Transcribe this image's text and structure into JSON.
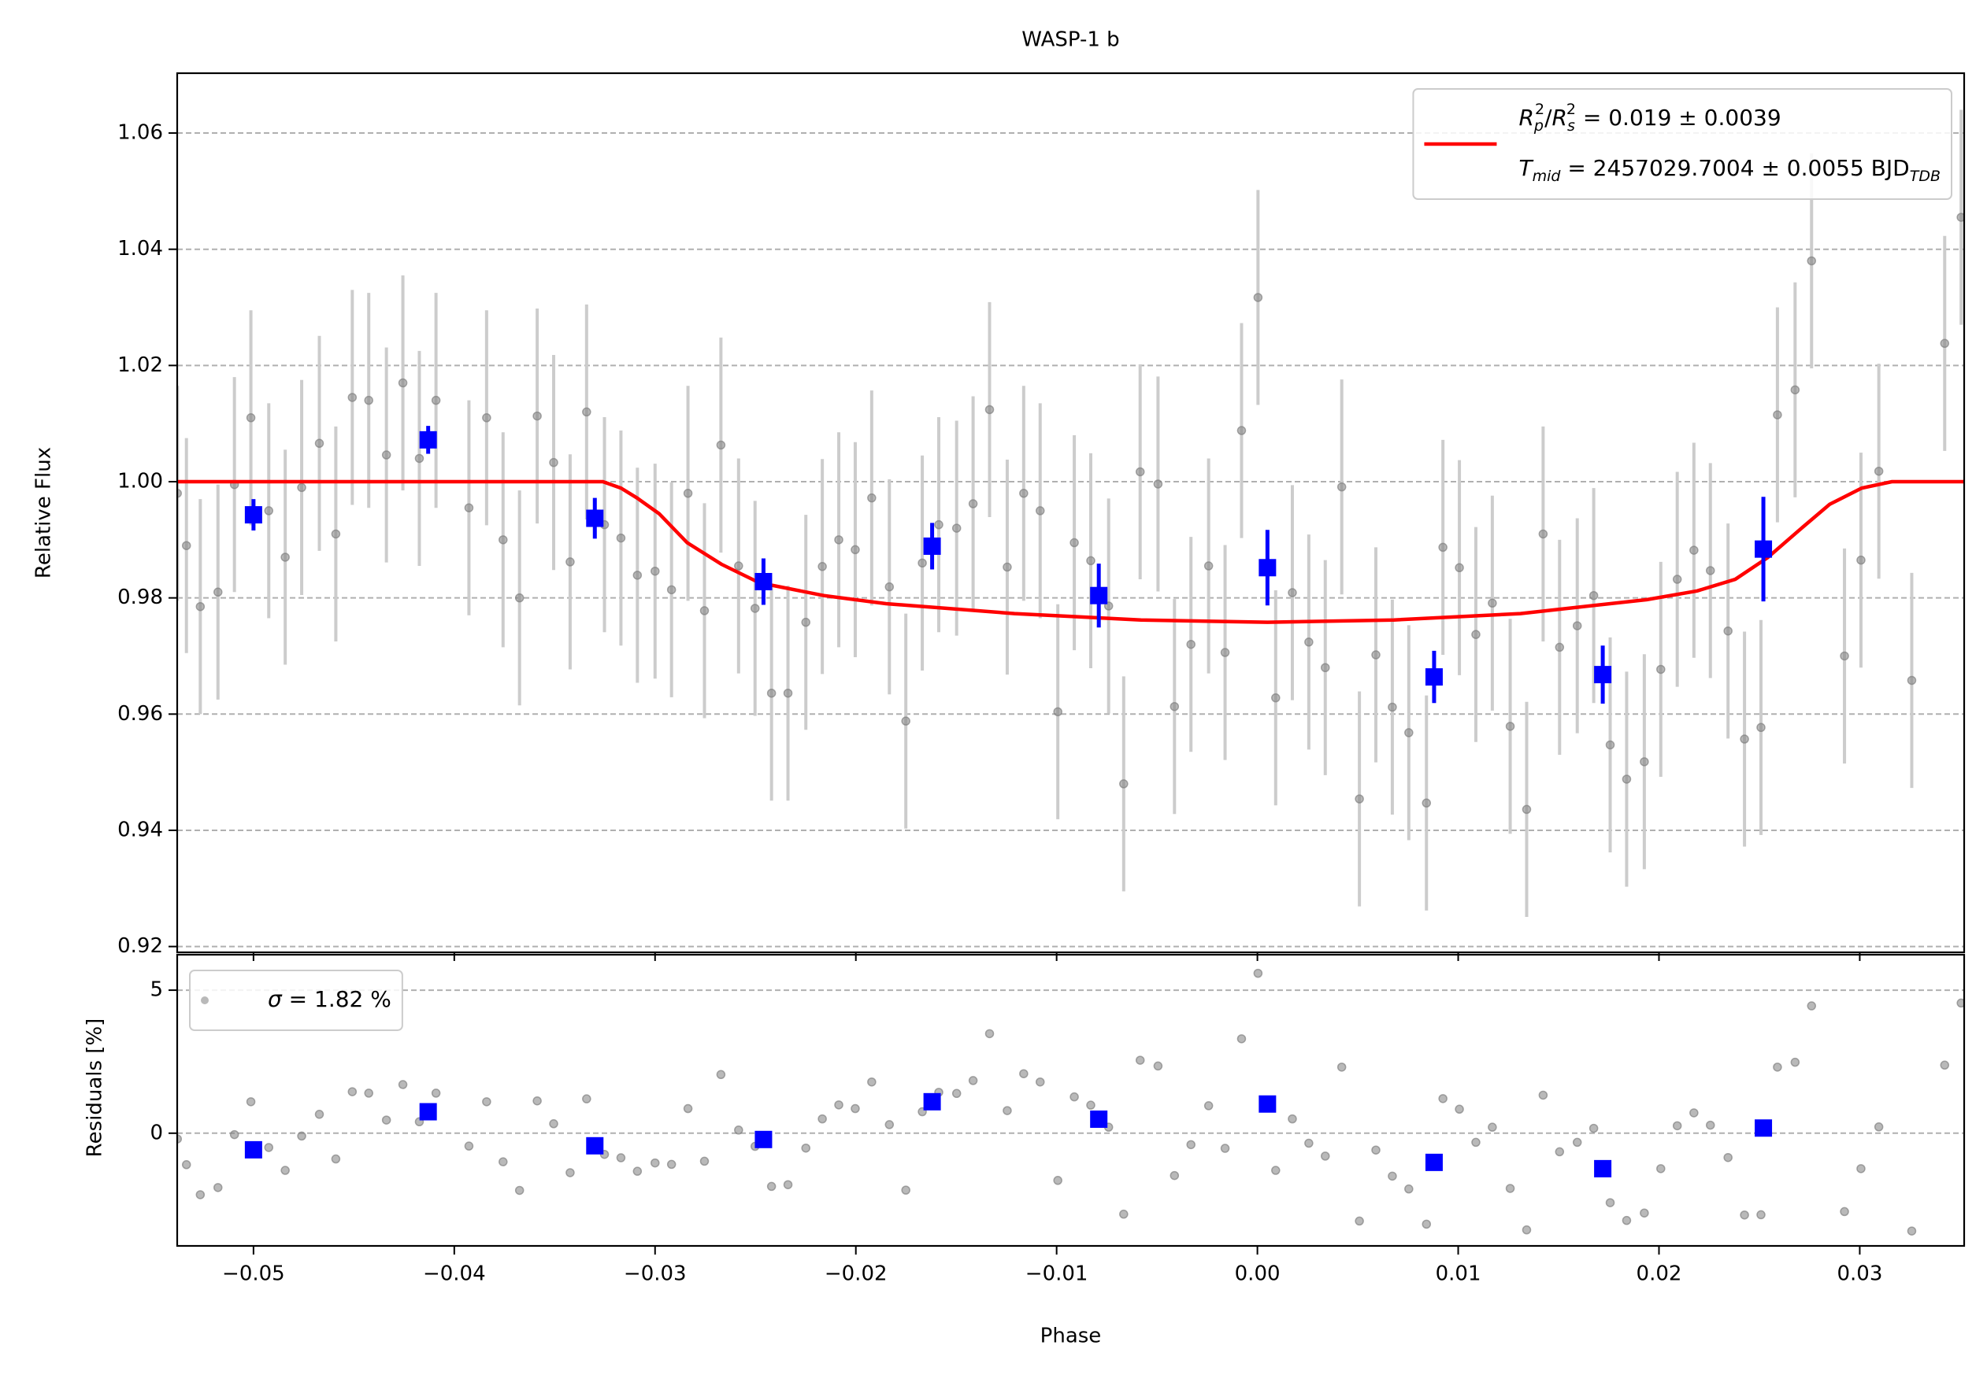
{
  "chart_data": [
    {
      "type": "errorbar",
      "title": "WASP-1 b",
      "ylabel": "Relative Flux",
      "xlim": [
        -0.0538,
        0.0352
      ],
      "ylim": [
        0.919,
        1.0703
      ],
      "yticks": [
        0.92,
        0.94,
        0.96,
        0.98,
        {
          "value": 1,
          "label": "1.00"
        },
        1.02,
        1.04,
        1.06
      ],
      "grid": true,
      "legend": "upper right",
      "series": [
        {
          "marker": "circle",
          "color": "#808080",
          "errcolor": "#cccccc",
          "yerr": 0.0185,
          "x": [
            -0.05379,
            -0.05334,
            -0.05265,
            -0.05177,
            -0.05095,
            -0.05013,
            -0.04924,
            -0.04842,
            -0.0476,
            -0.04672,
            -0.0459,
            -0.04508,
            -0.04426,
            -0.04338,
            -0.04256,
            -0.04174,
            -0.04091,
            -0.03927,
            -0.03839,
            -0.03757,
            -0.03675,
            -0.03587,
            -0.03505,
            -0.03423,
            -0.03341,
            -0.03252,
            -0.0317,
            -0.03088,
            -0.03,
            -0.02918,
            -0.02836,
            -0.02754,
            -0.02672,
            -0.02584,
            -0.02502,
            -0.0242,
            -0.02338,
            -0.02249,
            -0.02167,
            -0.02085,
            -0.02003,
            -0.01921,
            -0.01833,
            -0.01751,
            -0.01669,
            -0.01587,
            -0.01498,
            -0.01416,
            -0.01334,
            -0.01246,
            -0.01164,
            -0.01082,
            -0.00994,
            -0.00912,
            -0.0083,
            -0.00741,
            -0.00666,
            -0.00584,
            -0.00495,
            -0.00413,
            -0.00331,
            -0.00243,
            -0.00161,
            -0.00079,
            3e-05,
            0.00091,
            0.00174,
            0.00256,
            0.00338,
            0.0042,
            0.00508,
            0.0059,
            0.00672,
            0.00754,
            0.00842,
            0.00924,
            0.01006,
            0.01088,
            0.0117,
            0.01259,
            0.01341,
            0.01423,
            0.01505,
            0.01593,
            0.01675,
            0.01757,
            0.01839,
            0.01927,
            0.02009,
            0.02091,
            0.02174,
            0.02256,
            0.02344,
            0.02426,
            0.02508,
            0.0259,
            0.02678,
            0.0276,
            0.02924,
            0.03006,
            0.03095,
            0.03259,
            0.03423,
            0.03505
          ],
          "values": [
            0.998,
            0.989,
            0.9785,
            0.981,
            0.9995,
            1.011,
            0.995,
            0.987,
            0.999,
            1.0066,
            0.991,
            1.0145,
            1.014,
            1.0046,
            1.017,
            1.004,
            1.014,
            0.9955,
            1.011,
            0.99,
            0.98,
            1.0113,
            1.0033,
            0.9862,
            1.012,
            0.9926,
            0.9903,
            0.9839,
            0.9846,
            0.9814,
            0.998,
            0.9778,
            1.0063,
            0.9855,
            0.9782,
            0.9636,
            0.9636,
            0.9758,
            0.9854,
            0.99,
            0.9883,
            0.9972,
            0.9819,
            0.9588,
            0.986,
            0.9926,
            0.992,
            0.9962,
            1.0124,
            0.9853,
            0.998,
            0.995,
            0.9604,
            0.9895,
            0.9864,
            0.9786,
            0.948,
            1.0017,
            0.9996,
            0.9613,
            0.972,
            0.9855,
            0.9706,
            1.0088,
            1.0317,
            0.9628,
            0.9809,
            0.9724,
            0.968,
            0.9991,
            0.9454,
            0.9702,
            0.9612,
            0.9568,
            0.9447,
            0.9887,
            0.9852,
            0.9737,
            0.9791,
            0.9579,
            0.9436,
            0.991,
            0.9715,
            0.9752,
            0.9804,
            0.9547,
            0.9488,
            0.9518,
            0.9677,
            0.9832,
            0.9882,
            0.9847,
            0.9743,
            0.9557,
            0.9577,
            1.0115,
            1.0158,
            1.038,
            0.97,
            0.9865,
            1.0018,
            0.9658,
            1.0238,
            1.0455
          ]
        },
        {
          "marker": "none",
          "color": "#ff0000",
          "name": [
            [
              {
                "text": "R",
                "font": "italic"
              },
              {
                "text": "p",
                "font": "italic-sub"
              },
              {
                "text": "2",
                "font": "sup-stack"
              },
              {
                "text": "/",
                "font": "normal"
              },
              {
                "text": "R",
                "font": "italic"
              },
              {
                "text": "s",
                "font": "italic-sub"
              },
              {
                "text": "2",
                "font": "sup-stack"
              },
              {
                "text": " = 0.019 ± 0.0039",
                "font": "normal"
              }
            ],
            [
              {
                "text": "T",
                "font": "italic"
              },
              {
                "text": "mid",
                "font": "italic-sub"
              },
              {
                "text": " = 2457029.7004 ± 0.0055 BJD",
                "font": "normal"
              },
              {
                "text": "TDB",
                "font": "italic-sub"
              }
            ]
          ],
          "x": [
            -0.0538,
            -0.0326,
            -0.0317,
            -0.0309,
            -0.0298,
            -0.0284,
            -0.0267,
            -0.0248,
            -0.0216,
            -0.0185,
            -0.0121,
            -0.0058,
            0.0005,
            0.0068,
            0.0131,
            0.0194,
            0.0219,
            0.0238,
            0.0254,
            0.027,
            0.0285,
            0.0301,
            0.0316,
            0.0352
          ],
          "values": [
            1.0,
            1.0,
            0.9989,
            0.9972,
            0.9945,
            0.9895,
            0.9858,
            0.9826,
            0.9804,
            0.979,
            0.9773,
            0.9762,
            0.9758,
            0.9762,
            0.9773,
            0.9797,
            0.9812,
            0.9832,
            0.9869,
            0.9917,
            0.9961,
            0.9989,
            1.0,
            1.0
          ]
        },
        {
          "marker": "square",
          "color": "#0000ff",
          "x": [
            -0.05,
            -0.0413,
            -0.033,
            -0.0246,
            -0.0162,
            -0.0079,
            0.0005,
            0.0088,
            0.0172,
            0.0252
          ],
          "values": [
            0.9943,
            1.0072,
            0.9937,
            0.9828,
            0.9889,
            0.9804,
            0.9852,
            0.9664,
            0.9668,
            0.9884
          ],
          "errors": [
            0.0027,
            0.0024,
            0.0035,
            0.004,
            0.004,
            0.0055,
            0.0065,
            0.0045,
            0.005,
            0.009
          ]
        }
      ]
    },
    {
      "type": "scatter",
      "xlabel": "Phase",
      "ylabel": "Residuals [%]",
      "xlim": [
        -0.0538,
        0.0352
      ],
      "ylim": [
        -3.94,
        6.24
      ],
      "xticks": [
        {
          "value": -0.05,
          "label": "−0.05"
        },
        {
          "value": -0.04,
          "label": "−0.04"
        },
        {
          "value": -0.03,
          "label": "−0.03"
        },
        {
          "value": -0.02,
          "label": "−0.02"
        },
        {
          "value": -0.01,
          "label": "−0.01"
        },
        {
          "value": 0,
          "label": "0.00"
        },
        0.01,
        0.02,
        0.03
      ],
      "yticks": [
        0,
        5
      ],
      "grid": true,
      "legend": "upper left",
      "series": [
        {
          "marker": "circle",
          "color": "#808080",
          "name": [
            [
              {
                "text": "σ",
                "font": "italic"
              },
              {
                "text": " = 1.82 %",
                "font": "normal"
              }
            ]
          ],
          "x": [
            -0.05379,
            -0.05334,
            -0.05265,
            -0.05177,
            -0.05095,
            -0.05013,
            -0.04924,
            -0.04842,
            -0.0476,
            -0.04672,
            -0.0459,
            -0.04508,
            -0.04426,
            -0.04338,
            -0.04256,
            -0.04174,
            -0.04091,
            -0.03927,
            -0.03839,
            -0.03757,
            -0.03675,
            -0.03587,
            -0.03505,
            -0.03423,
            -0.03341,
            -0.03252,
            -0.0317,
            -0.03088,
            -0.03,
            -0.02918,
            -0.02836,
            -0.02754,
            -0.02672,
            -0.02584,
            -0.02502,
            -0.0242,
            -0.02338,
            -0.02249,
            -0.02167,
            -0.02085,
            -0.02003,
            -0.01921,
            -0.01833,
            -0.01751,
            -0.01669,
            -0.01587,
            -0.01498,
            -0.01416,
            -0.01334,
            -0.01246,
            -0.01164,
            -0.01082,
            -0.00994,
            -0.00912,
            -0.0083,
            -0.00741,
            -0.00666,
            -0.00584,
            -0.00495,
            -0.00413,
            -0.00331,
            -0.00243,
            -0.00161,
            -0.00079,
            3e-05,
            0.00091,
            0.00174,
            0.00256,
            0.00338,
            0.0042,
            0.00508,
            0.0059,
            0.00672,
            0.00754,
            0.00842,
            0.00924,
            0.01006,
            0.01088,
            0.0117,
            0.01259,
            0.01341,
            0.01423,
            0.01505,
            0.01593,
            0.01675,
            0.01757,
            0.01839,
            0.01927,
            0.02009,
            0.02091,
            0.02174,
            0.02256,
            0.02344,
            0.02426,
            0.02508,
            0.0259,
            0.02678,
            0.0276,
            0.02924,
            0.03006,
            0.03095,
            0.03259,
            0.03423,
            0.03505
          ],
          "values": [
            -0.2,
            -1.1,
            -2.15,
            -1.9,
            -0.05,
            1.1,
            -0.5,
            -1.3,
            -0.1,
            0.66,
            -0.9,
            1.45,
            1.4,
            0.46,
            1.7,
            0.4,
            1.4,
            -0.45,
            1.1,
            -1.0,
            -2.0,
            1.13,
            0.33,
            -1.38,
            1.2,
            -0.74,
            -0.86,
            -1.33,
            -1.04,
            -1.09,
            0.86,
            -0.98,
            2.05,
            0.11,
            -0.46,
            -1.86,
            -1.8,
            -0.52,
            0.5,
            0.99,
            0.86,
            1.79,
            0.3,
            -1.99,
            0.75,
            1.43,
            1.39,
            1.84,
            3.48,
            0.79,
            2.08,
            1.79,
            -1.65,
            1.27,
            0.98,
            0.21,
            -2.83,
            2.55,
            2.35,
            -1.48,
            -0.4,
            0.96,
            -0.53,
            3.3,
            5.59,
            -1.3,
            0.5,
            -0.35,
            -0.8,
            2.31,
            -3.07,
            -0.59,
            -1.5,
            -1.95,
            -3.18,
            1.21,
            0.84,
            -0.32,
            0.21,
            -1.93,
            -3.38,
            1.33,
            -0.65,
            -0.32,
            0.17,
            -2.43,
            -3.05,
            -2.79,
            -1.24,
            0.26,
            0.71,
            0.28,
            -0.85,
            -2.86,
            -2.85,
            2.31,
            2.48,
            4.45,
            -2.74,
            -1.24,
            0.22,
            -3.42,
            2.38,
            4.55
          ]
        },
        {
          "marker": "square",
          "color": "#0000ff",
          "x": [
            -0.05,
            -0.0413,
            -0.033,
            -0.0246,
            -0.0162,
            -0.0079,
            0.0005,
            0.0088,
            0.0172,
            0.0252
          ],
          "values": [
            -0.58,
            0.75,
            -0.44,
            -0.22,
            1.1,
            0.49,
            1.02,
            -1.02,
            -1.24,
            0.18
          ]
        }
      ]
    }
  ]
}
